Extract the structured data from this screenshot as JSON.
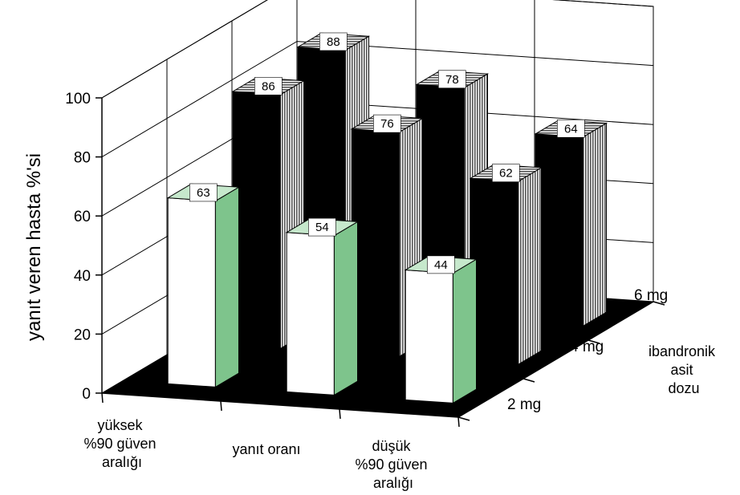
{
  "chart_data": {
    "type": "bar",
    "title": "",
    "ylabel": "yanıt veren hasta %'si",
    "ylim": [
      0,
      100
    ],
    "yticks": [
      "0",
      "20",
      "40",
      "60",
      "80",
      "100"
    ],
    "x_axis": {
      "categories": [
        [
          "yüksek",
          "%90 güven",
          "aralığı"
        ],
        [
          "yanıt oranı"
        ],
        [
          "düşük",
          "%90 güven",
          "aralığı"
        ]
      ]
    },
    "depth_axis": {
      "label": [
        "ibandronik",
        "asit",
        "dozu"
      ],
      "categories": [
        "2 mg",
        "4 mg",
        "6 mg"
      ]
    },
    "series": [
      {
        "name": "2 mg",
        "values": [
          63,
          54,
          44
        ]
      },
      {
        "name": "4 mg",
        "values": [
          86,
          76,
          62
        ]
      },
      {
        "name": "6 mg",
        "values": [
          88,
          78,
          64
        ]
      }
    ],
    "colors": {
      "series_2mg_front": "#ffffff",
      "series_2mg_side": "#7ec48c",
      "series_2mg_top": "#c6e8cc",
      "series_dark_front": "#000000",
      "series_dark_stripe": "#555555",
      "floor": "#000000"
    },
    "grid": true
  }
}
